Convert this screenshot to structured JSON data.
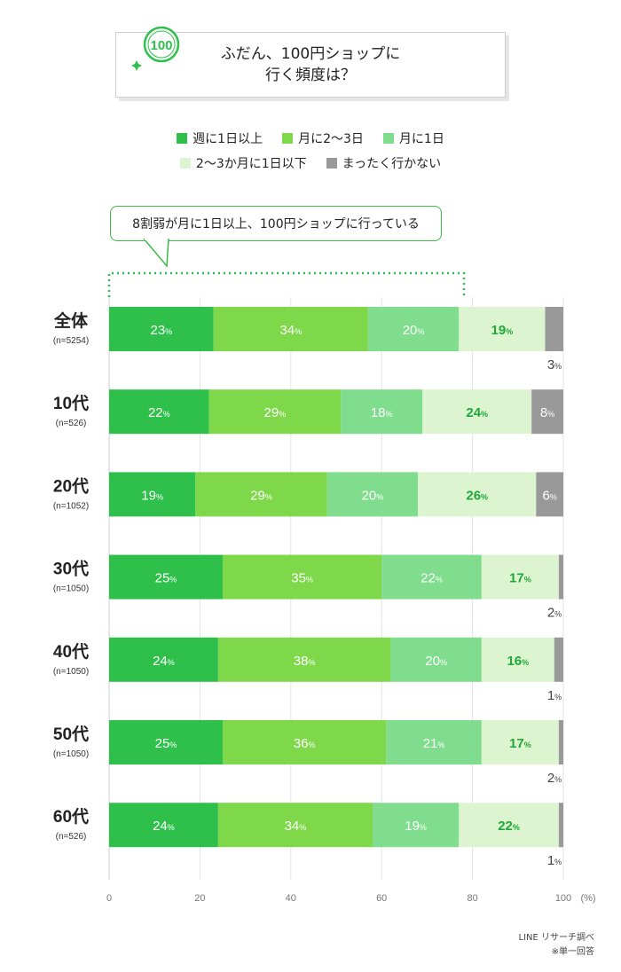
{
  "header": {
    "title_line1": "ふだん、100円ショップに",
    "title_line2": "行く頻度は？",
    "logo_text": "100"
  },
  "legend": [
    {
      "label": "週に1日以上",
      "color": "#2fc04c"
    },
    {
      "label": "月に2〜3日",
      "color": "#7ed84a"
    },
    {
      "label": "月に1日",
      "color": "#80dd8e"
    },
    {
      "label": "2〜3か月に1日以下",
      "color": "#dcf5d0"
    },
    {
      "label": "まったく行かない",
      "color": "#999999"
    }
  ],
  "callout": {
    "text": "8割弱が月に1日以上、100円ショップに行っている"
  },
  "chart_data": {
    "type": "bar",
    "orientation": "horizontal-stacked",
    "categories": [
      "全体",
      "10代",
      "20代",
      "30代",
      "40代",
      "50代",
      "60代"
    ],
    "sample_sizes": [
      "(n=5254)",
      "(n=526)",
      "(n=1052)",
      "(n=1050)",
      "(n=1050)",
      "(n=1050)",
      "(n=526)"
    ],
    "series": [
      {
        "name": "週に1日以上",
        "values": [
          23,
          22,
          19,
          25,
          24,
          25,
          24
        ]
      },
      {
        "name": "月に2〜3日",
        "values": [
          34,
          29,
          29,
          35,
          38,
          36,
          34
        ]
      },
      {
        "name": "月に1日",
        "values": [
          20,
          18,
          20,
          22,
          20,
          21,
          19
        ]
      },
      {
        "name": "2〜3か月に1日以下",
        "values": [
          19,
          24,
          26,
          17,
          16,
          17,
          22
        ]
      },
      {
        "name": "まったく行かない",
        "values": [
          3,
          8,
          6,
          2,
          1,
          2,
          1
        ]
      }
    ],
    "value_suffix": "%",
    "xlim": [
      0,
      100
    ],
    "xticks": [
      0,
      20,
      40,
      60,
      80,
      100
    ],
    "xunit": "(%)",
    "grid": true
  },
  "footer": {
    "source": "LINE リサーチ調べ",
    "note": "※単一回答"
  }
}
